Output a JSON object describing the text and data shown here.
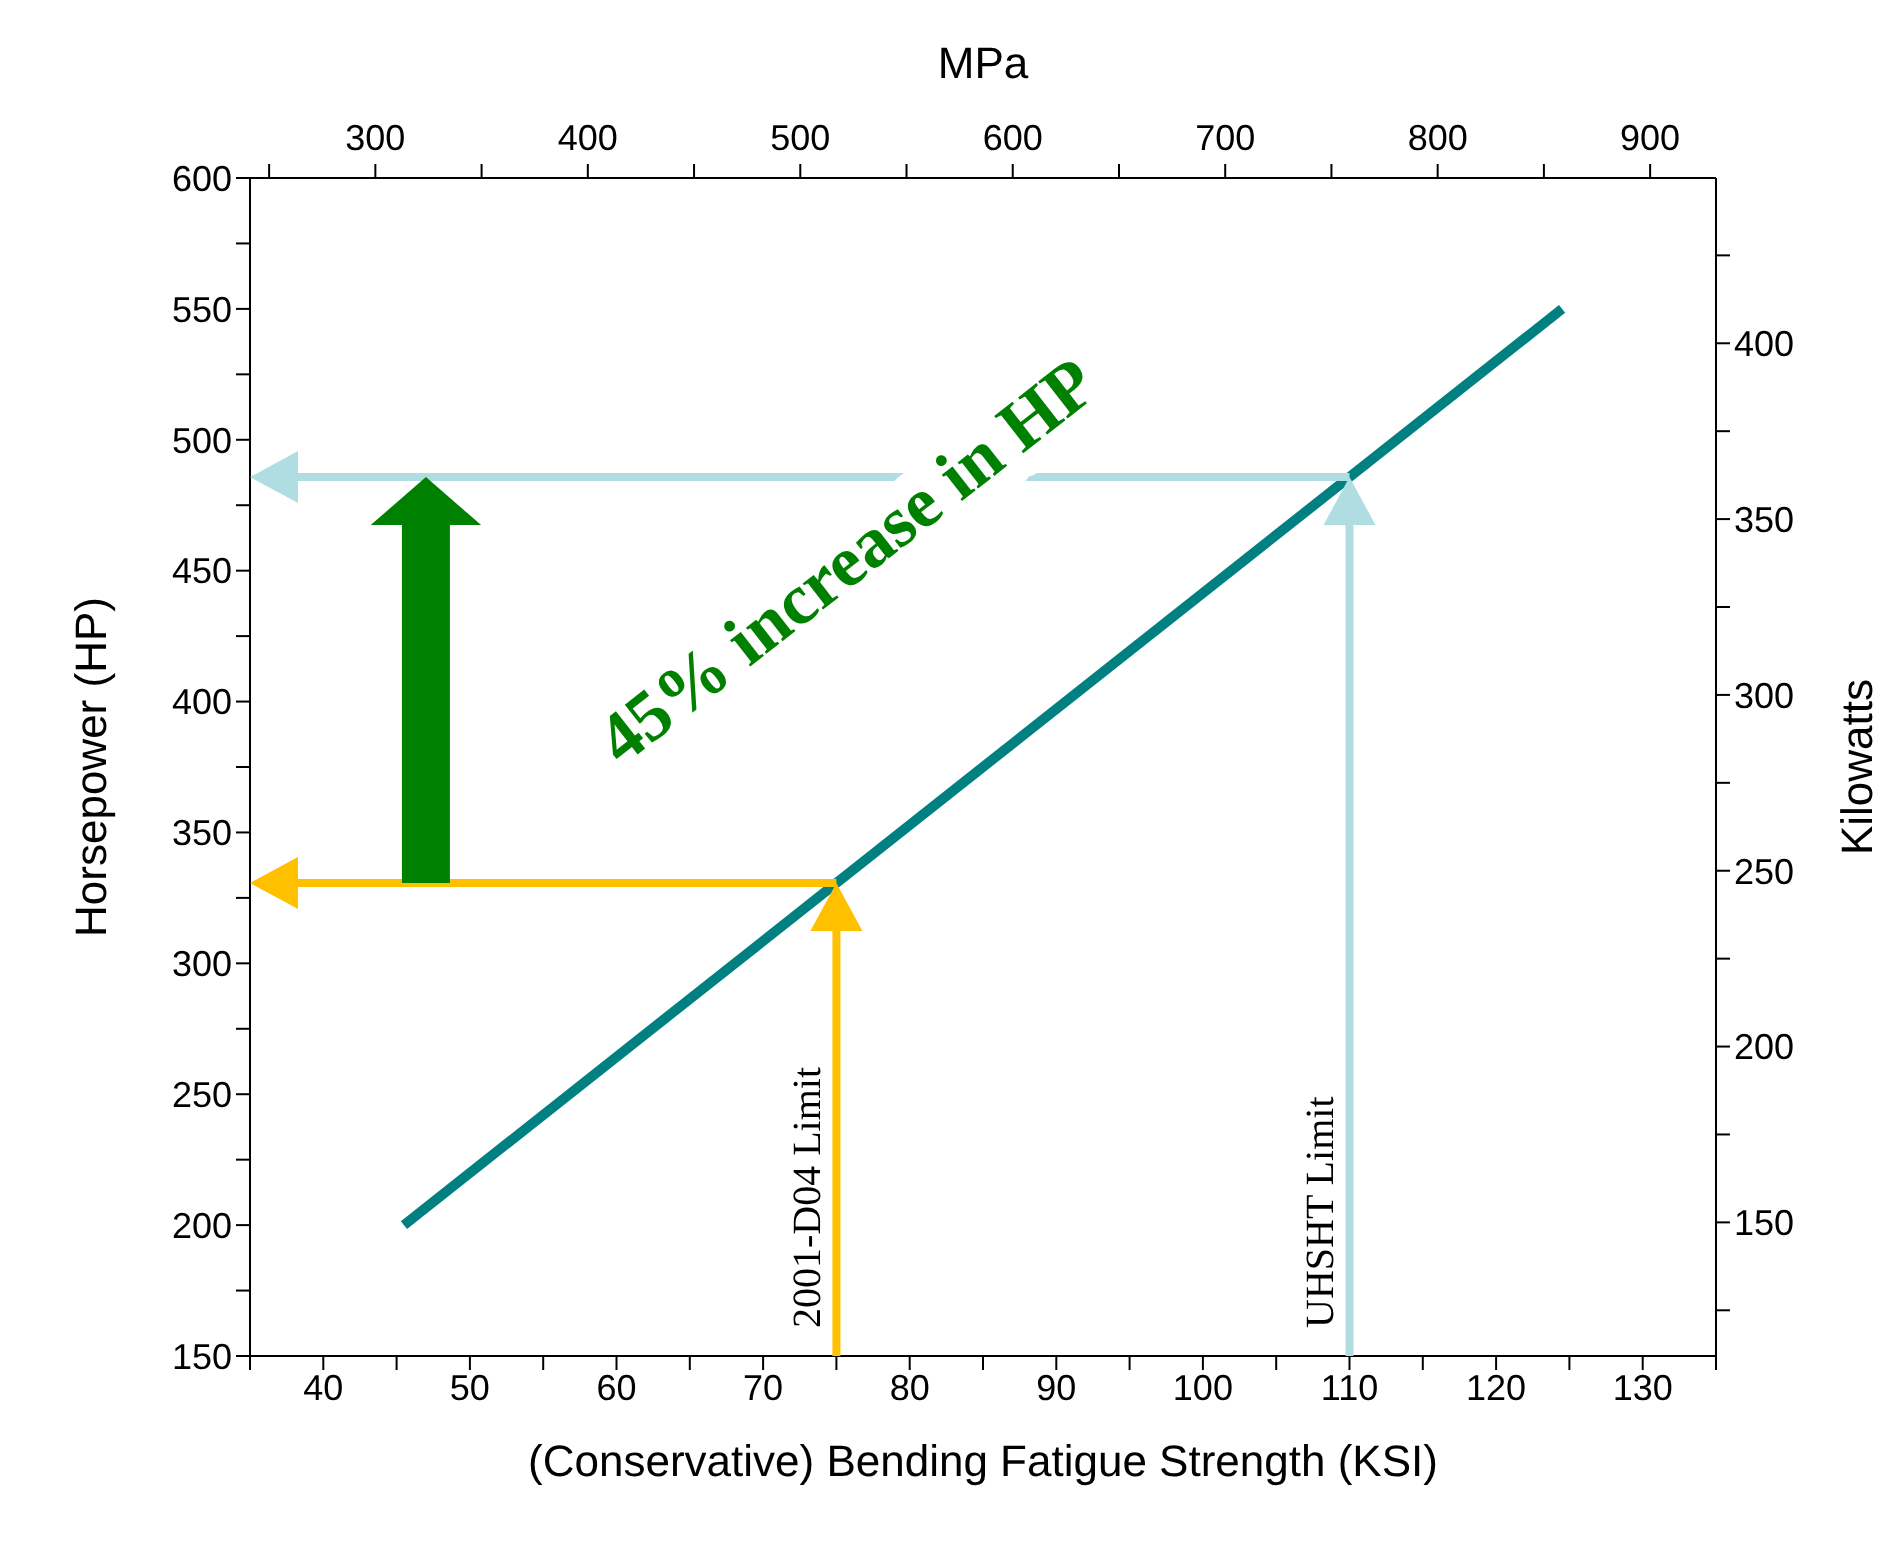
{
  "chart_data": {
    "type": "line",
    "xlabel": "(Conservative) Bending Fatigue Strength (KSI)",
    "ylabel": "Horsepower (HP)",
    "y2label": "Kilowatts",
    "x2label": "MPa",
    "xlim": [
      35,
      135
    ],
    "xticks": [
      {
        "value": 35,
        "label": null
      },
      40,
      {
        "value": 45,
        "label": null
      },
      50,
      {
        "value": 55,
        "label": null
      },
      60,
      {
        "value": 65,
        "label": null
      },
      70,
      {
        "value": 75,
        "label": null
      },
      80,
      {
        "value": 85,
        "label": null
      },
      90,
      {
        "value": 95,
        "label": null
      },
      100,
      {
        "value": 105,
        "label": null
      },
      110,
      {
        "value": 115,
        "label": null
      },
      120,
      {
        "value": 125,
        "label": null
      },
      130,
      {
        "value": 135,
        "label": null
      }
    ],
    "ylim": [
      150,
      600
    ],
    "yticks": [
      150,
      {
        "value": 175,
        "label": null
      },
      200,
      {
        "value": 225,
        "label": null
      },
      250,
      {
        "value": 275,
        "label": null
      },
      300,
      {
        "value": 325,
        "label": null
      },
      350,
      {
        "value": 375,
        "label": null
      },
      400,
      {
        "value": 425,
        "label": null
      },
      450,
      {
        "value": 475,
        "label": null
      },
      500,
      {
        "value": 525,
        "label": null
      },
      550,
      {
        "value": 575,
        "label": null
      },
      600
    ],
    "x2lim": [
      241,
      931
    ],
    "x2ticks": [
      {
        "value": 250,
        "label": null
      },
      300,
      {
        "value": 350,
        "label": null
      },
      400,
      {
        "value": 450,
        "label": null
      },
      500,
      {
        "value": 550,
        "label": null
      },
      600,
      {
        "value": 650,
        "label": null
      },
      700,
      {
        "value": 750,
        "label": null
      },
      800,
      {
        "value": 850,
        "label": null
      },
      900
    ],
    "y2lim": [
      112,
      447
    ],
    "y2ticks": [
      {
        "value": 125,
        "label": null
      },
      150,
      {
        "value": 175,
        "label": null
      },
      200,
      {
        "value": 225,
        "label": null
      },
      250,
      {
        "value": 275,
        "label": null
      },
      300,
      {
        "value": 325,
        "label": null
      },
      350,
      {
        "value": 375,
        "label": null
      },
      400,
      {
        "value": 425,
        "label": null
      }
    ],
    "grid": false,
    "series": [
      {
        "type": "line",
        "color": "#008080",
        "x": [
          45.5,
          124.5
        ],
        "values": [
          200,
          550
        ]
      }
    ],
    "ref_lines": [
      {
        "axis": "x",
        "value": 75,
        "label": "2001-D04 Limit",
        "color": "#ffc000"
      },
      {
        "axis": "x",
        "value": 110,
        "label": "UHSHT Limit",
        "color": "#b0dde2"
      }
    ],
    "annotations": [
      "45% increase in HP"
    ]
  }
}
